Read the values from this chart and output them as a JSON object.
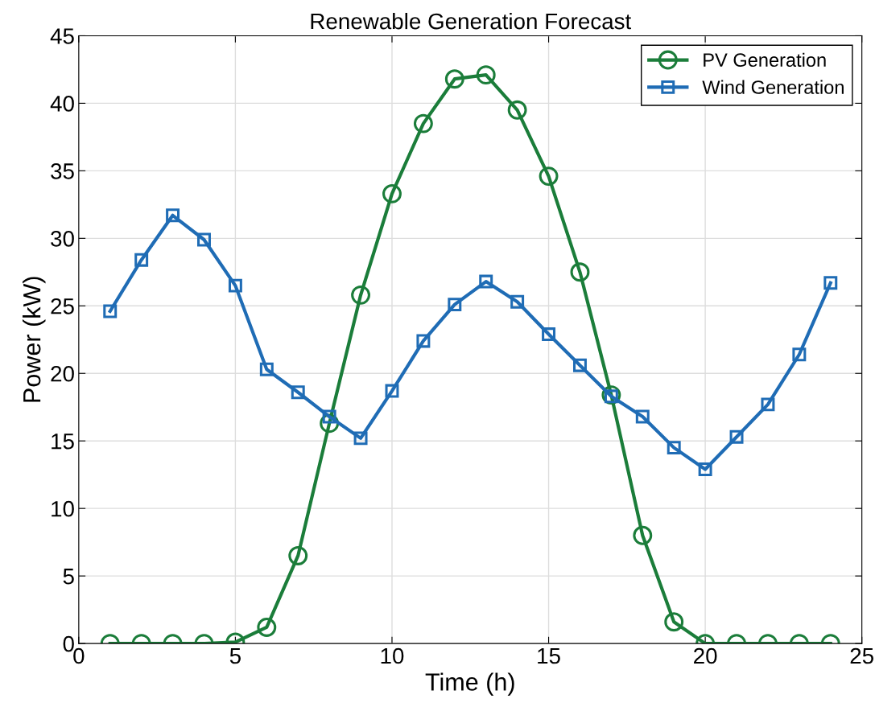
{
  "chart_data": {
    "type": "line",
    "title": "Renewable Generation Forecast",
    "xlabel": "Time (h)",
    "ylabel": "Power (kW)",
    "x": [
      1,
      2,
      3,
      4,
      5,
      6,
      7,
      8,
      9,
      10,
      11,
      12,
      13,
      14,
      15,
      16,
      17,
      18,
      19,
      20,
      21,
      22,
      23,
      24
    ],
    "series": [
      {
        "name": "PV Generation",
        "color": "#1b7d3a",
        "marker": "circle",
        "values": [
          0,
          0,
          0,
          0,
          0.1,
          1.2,
          6.5,
          16.3,
          25.8,
          33.3,
          38.5,
          41.8,
          42.1,
          39.5,
          34.6,
          27.5,
          18.4,
          8.0,
          1.6,
          0,
          0,
          0,
          0,
          0
        ]
      },
      {
        "name": "Wind Generation",
        "color": "#1f6cb5",
        "marker": "square",
        "values": [
          24.6,
          28.4,
          31.7,
          29.9,
          26.5,
          20.3,
          18.6,
          16.8,
          15.2,
          18.7,
          22.4,
          25.1,
          26.8,
          25.3,
          22.9,
          20.6,
          18.3,
          16.8,
          14.5,
          12.9,
          15.3,
          17.7,
          21.4,
          26.7
        ]
      }
    ],
    "xlim": [
      0,
      25
    ],
    "xticks": [
      0,
      5,
      10,
      15,
      20,
      25
    ],
    "ylim": [
      0,
      45
    ],
    "yticks": [
      0,
      5,
      10,
      15,
      20,
      25,
      30,
      35,
      40,
      45
    ],
    "grid": true,
    "legend": "top right",
    "line_style": "solid"
  }
}
